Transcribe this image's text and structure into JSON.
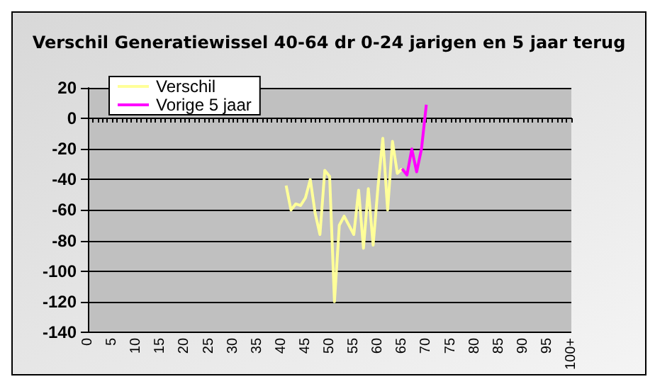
{
  "chart_data": {
    "type": "line",
    "title": "Verschil Generatiewissel 40-64 dr 0-24 jarigen en 5 jaar terug",
    "categories": [
      "0",
      null,
      null,
      null,
      null,
      "5",
      null,
      null,
      null,
      null,
      "10",
      null,
      null,
      null,
      null,
      "15",
      null,
      null,
      null,
      null,
      "20",
      null,
      null,
      null,
      null,
      "25",
      null,
      null,
      null,
      null,
      "30",
      null,
      null,
      null,
      null,
      "35",
      null,
      null,
      null,
      null,
      "40",
      null,
      null,
      null,
      null,
      "45",
      null,
      null,
      null,
      null,
      "50",
      null,
      null,
      null,
      null,
      "55",
      null,
      null,
      null,
      null,
      "60",
      null,
      null,
      null,
      null,
      "65",
      null,
      null,
      null,
      null,
      "70",
      null,
      null,
      null,
      null,
      "75",
      null,
      null,
      null,
      null,
      "80",
      null,
      null,
      null,
      null,
      "85",
      null,
      null,
      null,
      null,
      "90",
      null,
      null,
      null,
      null,
      "95",
      null,
      null,
      null,
      null,
      "100+"
    ],
    "series": [
      {
        "name": "Verschil",
        "color": "#ffff99",
        "values": [
          null,
          null,
          null,
          null,
          null,
          null,
          null,
          null,
          null,
          null,
          null,
          null,
          null,
          null,
          null,
          null,
          null,
          null,
          null,
          null,
          null,
          null,
          null,
          null,
          null,
          null,
          null,
          null,
          null,
          null,
          null,
          null,
          null,
          null,
          null,
          null,
          null,
          null,
          null,
          null,
          null,
          -44,
          -60,
          -56,
          -57,
          -52,
          -40,
          -62,
          -76,
          -34,
          -38,
          -120,
          -70,
          -64,
          -70,
          -76,
          -47,
          -85,
          -46,
          -83,
          -45,
          -13,
          -60,
          -15,
          -36,
          -33,
          null,
          null,
          null,
          null,
          null,
          null,
          null,
          null,
          null,
          null,
          null,
          null,
          null,
          null,
          null,
          null,
          null,
          null,
          null,
          null,
          null,
          null,
          null,
          null,
          null,
          null,
          null,
          null,
          null,
          null,
          null,
          null,
          null,
          null,
          null
        ]
      },
      {
        "name": "Vorige 5 jaar",
        "color": "#ff00ff",
        "values": [
          null,
          null,
          null,
          null,
          null,
          null,
          null,
          null,
          null,
          null,
          null,
          null,
          null,
          null,
          null,
          null,
          null,
          null,
          null,
          null,
          null,
          null,
          null,
          null,
          null,
          null,
          null,
          null,
          null,
          null,
          null,
          null,
          null,
          null,
          null,
          null,
          null,
          null,
          null,
          null,
          null,
          null,
          null,
          null,
          null,
          null,
          null,
          null,
          null,
          null,
          null,
          null,
          null,
          null,
          null,
          null,
          null,
          null,
          null,
          null,
          null,
          null,
          null,
          null,
          null,
          -33,
          -37,
          -20,
          -35,
          -20,
          9,
          null,
          null,
          null,
          null,
          null,
          null,
          null,
          null,
          null,
          null,
          null,
          null,
          null,
          null,
          null,
          null,
          null,
          null,
          null,
          null,
          null,
          null,
          null,
          null,
          null,
          null,
          null,
          null,
          null,
          null
        ]
      }
    ],
    "ylim": [
      -140,
      20
    ],
    "yticks": [
      -140,
      -120,
      -100,
      -80,
      -60,
      -40,
      -20,
      0,
      20
    ],
    "grid": "y",
    "legend": "top left",
    "marker": "none",
    "line_style": "solid"
  }
}
